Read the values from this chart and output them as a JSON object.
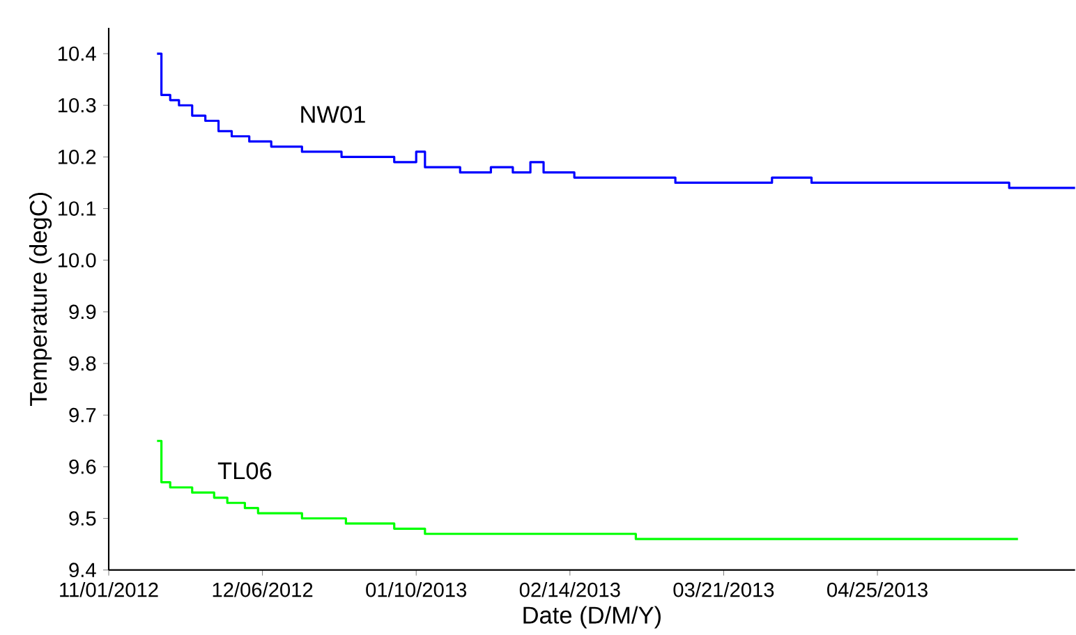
{
  "chart_data": {
    "type": "step",
    "xlabel": "Date (D/M/Y)",
    "ylabel": "Temperature (degC)",
    "xlim": [
      "2012-11-01",
      "2013-06-09"
    ],
    "xticks": [
      {
        "value": "2012-11-01",
        "label": "11/01/2012"
      },
      {
        "value": "2012-12-06",
        "label": "12/06/2012"
      },
      {
        "value": "2013-01-10",
        "label": "01/10/2013"
      },
      {
        "value": "2013-02-14",
        "label": "02/14/2013"
      },
      {
        "value": "2013-03-21",
        "label": "03/21/2013"
      },
      {
        "value": "2013-04-25",
        "label": "04/25/2013"
      }
    ],
    "ylim": [
      9.4,
      10.45
    ],
    "yticks": [
      9.4,
      9.5,
      9.6,
      9.7,
      9.8,
      9.9,
      {
        "value": 10,
        "label": "10.0"
      },
      10.1,
      10.2,
      10.3,
      10.4
    ],
    "grid": false,
    "legend": false,
    "series": [
      {
        "name": "NW01",
        "color": "#0000ff",
        "x": [
          "2012-11-12",
          "2012-11-13",
          "2012-11-15",
          "2012-11-17",
          "2012-11-20",
          "2012-11-23",
          "2012-11-26",
          "2012-11-29",
          "2012-12-03",
          "2012-12-08",
          "2012-12-15",
          "2012-12-22",
          "2012-12-24",
          "2013-01-05",
          "2013-01-10",
          "2013-01-12",
          "2013-01-20",
          "2013-01-27",
          "2013-02-01",
          "2013-02-05",
          "2013-02-08",
          "2013-02-15",
          "2013-03-01",
          "2013-03-10",
          "2013-04-01",
          "2013-04-10",
          "2013-05-01",
          "2013-05-25",
          "2013-06-09"
        ],
        "values": [
          10.4,
          10.32,
          10.31,
          10.3,
          10.28,
          10.27,
          10.25,
          10.24,
          10.23,
          10.22,
          10.21,
          10.21,
          10.2,
          10.19,
          10.21,
          10.18,
          10.17,
          10.18,
          10.17,
          10.19,
          10.17,
          10.16,
          10.16,
          10.15,
          10.16,
          10.15,
          10.15,
          10.14,
          10.14
        ]
      },
      {
        "name": "TL06",
        "color": "#00ff00",
        "x": [
          "2012-11-12",
          "2012-11-13",
          "2012-11-15",
          "2012-11-20",
          "2012-11-25",
          "2012-11-28",
          "2012-12-02",
          "2012-12-05",
          "2012-12-15",
          "2012-12-25",
          "2013-01-05",
          "2013-01-12",
          "2013-02-01",
          "2013-02-10",
          "2013-03-01",
          "2013-03-21",
          "2013-05-27"
        ],
        "values": [
          9.65,
          9.57,
          9.56,
          9.55,
          9.54,
          9.53,
          9.52,
          9.51,
          9.5,
          9.49,
          9.48,
          9.47,
          9.47,
          9.47,
          9.46,
          9.46,
          9.46
        ]
      }
    ]
  }
}
